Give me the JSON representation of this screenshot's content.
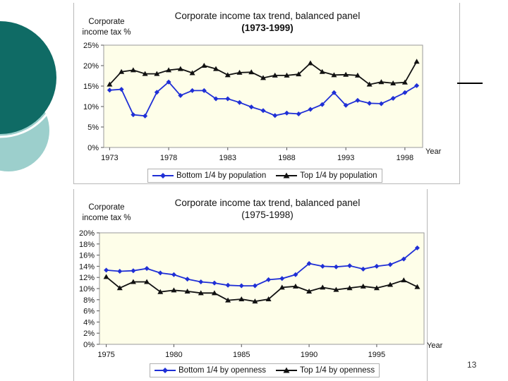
{
  "slide": {
    "page_number": "13"
  },
  "colors": {
    "bottom_series": "#1f2fd6",
    "top_series": "#111111",
    "plot_bg": "#fefee9",
    "teal_dark": "#0f6b65",
    "teal_light": "#9ccfcc"
  },
  "chart_data": [
    {
      "type": "line",
      "title": "Corporate income tax trend, balanced panel",
      "subtitle": "(1973-1999)",
      "ylabel_line1": "Corporate",
      "ylabel_line2": "income tax %",
      "xlabel": "Year",
      "x": [
        1973,
        1974,
        1975,
        1976,
        1977,
        1978,
        1979,
        1980,
        1981,
        1982,
        1983,
        1984,
        1985,
        1986,
        1987,
        1988,
        1989,
        1990,
        1991,
        1992,
        1993,
        1994,
        1995,
        1996,
        1997,
        1998,
        1999
      ],
      "x_ticks": [
        1973,
        1978,
        1983,
        1988,
        1993,
        1998
      ],
      "y_ticks": [
        "0%",
        "5%",
        "10%",
        "15%",
        "20%",
        "25%"
      ],
      "ylim": [
        0,
        25
      ],
      "series": [
        {
          "name": "Bottom 1/4 by population",
          "marker": "diamond",
          "values": [
            14.0,
            14.2,
            8.0,
            7.7,
            13.5,
            16.0,
            12.7,
            13.9,
            13.9,
            11.9,
            11.9,
            11.0,
            9.9,
            9.0,
            7.8,
            8.4,
            8.2,
            9.3,
            10.5,
            13.4,
            10.3,
            11.5,
            10.8,
            10.7,
            12.0,
            13.4,
            15.1
          ]
        },
        {
          "name": "Top 1/4 by population",
          "marker": "triangle",
          "values": [
            15.4,
            18.5,
            18.9,
            18.0,
            18.0,
            18.9,
            19.2,
            18.2,
            20.0,
            19.2,
            17.7,
            18.3,
            18.4,
            17.0,
            17.6,
            17.6,
            17.9,
            20.6,
            18.5,
            17.7,
            17.8,
            17.6,
            15.4,
            16.0,
            15.7,
            15.9,
            21.0
          ]
        }
      ]
    },
    {
      "type": "line",
      "title": "Corporate income tax trend, balanced panel",
      "subtitle": "(1975-1998)",
      "ylabel_line1": "Corporate",
      "ylabel_line2": "income tax %",
      "xlabel": "Year",
      "x": [
        1975,
        1976,
        1977,
        1978,
        1979,
        1980,
        1981,
        1982,
        1983,
        1984,
        1985,
        1986,
        1987,
        1988,
        1989,
        1990,
        1991,
        1992,
        1993,
        1994,
        1995,
        1996,
        1997,
        1998
      ],
      "x_ticks": [
        1975,
        1980,
        1985,
        1990,
        1995
      ],
      "y_ticks": [
        "0%",
        "2%",
        "4%",
        "6%",
        "8%",
        "10%",
        "12%",
        "14%",
        "16%",
        "18%",
        "20%"
      ],
      "ylim": [
        0,
        20
      ],
      "series": [
        {
          "name": "Bottom 1/4 by openness",
          "marker": "diamond",
          "values": [
            13.3,
            13.1,
            13.2,
            13.6,
            12.8,
            12.5,
            11.7,
            11.2,
            11.0,
            10.6,
            10.5,
            10.5,
            11.6,
            11.8,
            12.5,
            14.5,
            14.0,
            13.9,
            14.1,
            13.5,
            14.0,
            14.3,
            15.3,
            17.3
          ]
        },
        {
          "name": "Top 1/4 by openness",
          "marker": "triangle",
          "values": [
            12.1,
            10.1,
            11.2,
            11.2,
            9.4,
            9.7,
            9.5,
            9.2,
            9.2,
            7.9,
            8.1,
            7.7,
            8.1,
            10.2,
            10.4,
            9.5,
            10.2,
            9.8,
            10.1,
            10.4,
            10.1,
            10.7,
            11.5,
            10.3
          ]
        }
      ]
    }
  ]
}
